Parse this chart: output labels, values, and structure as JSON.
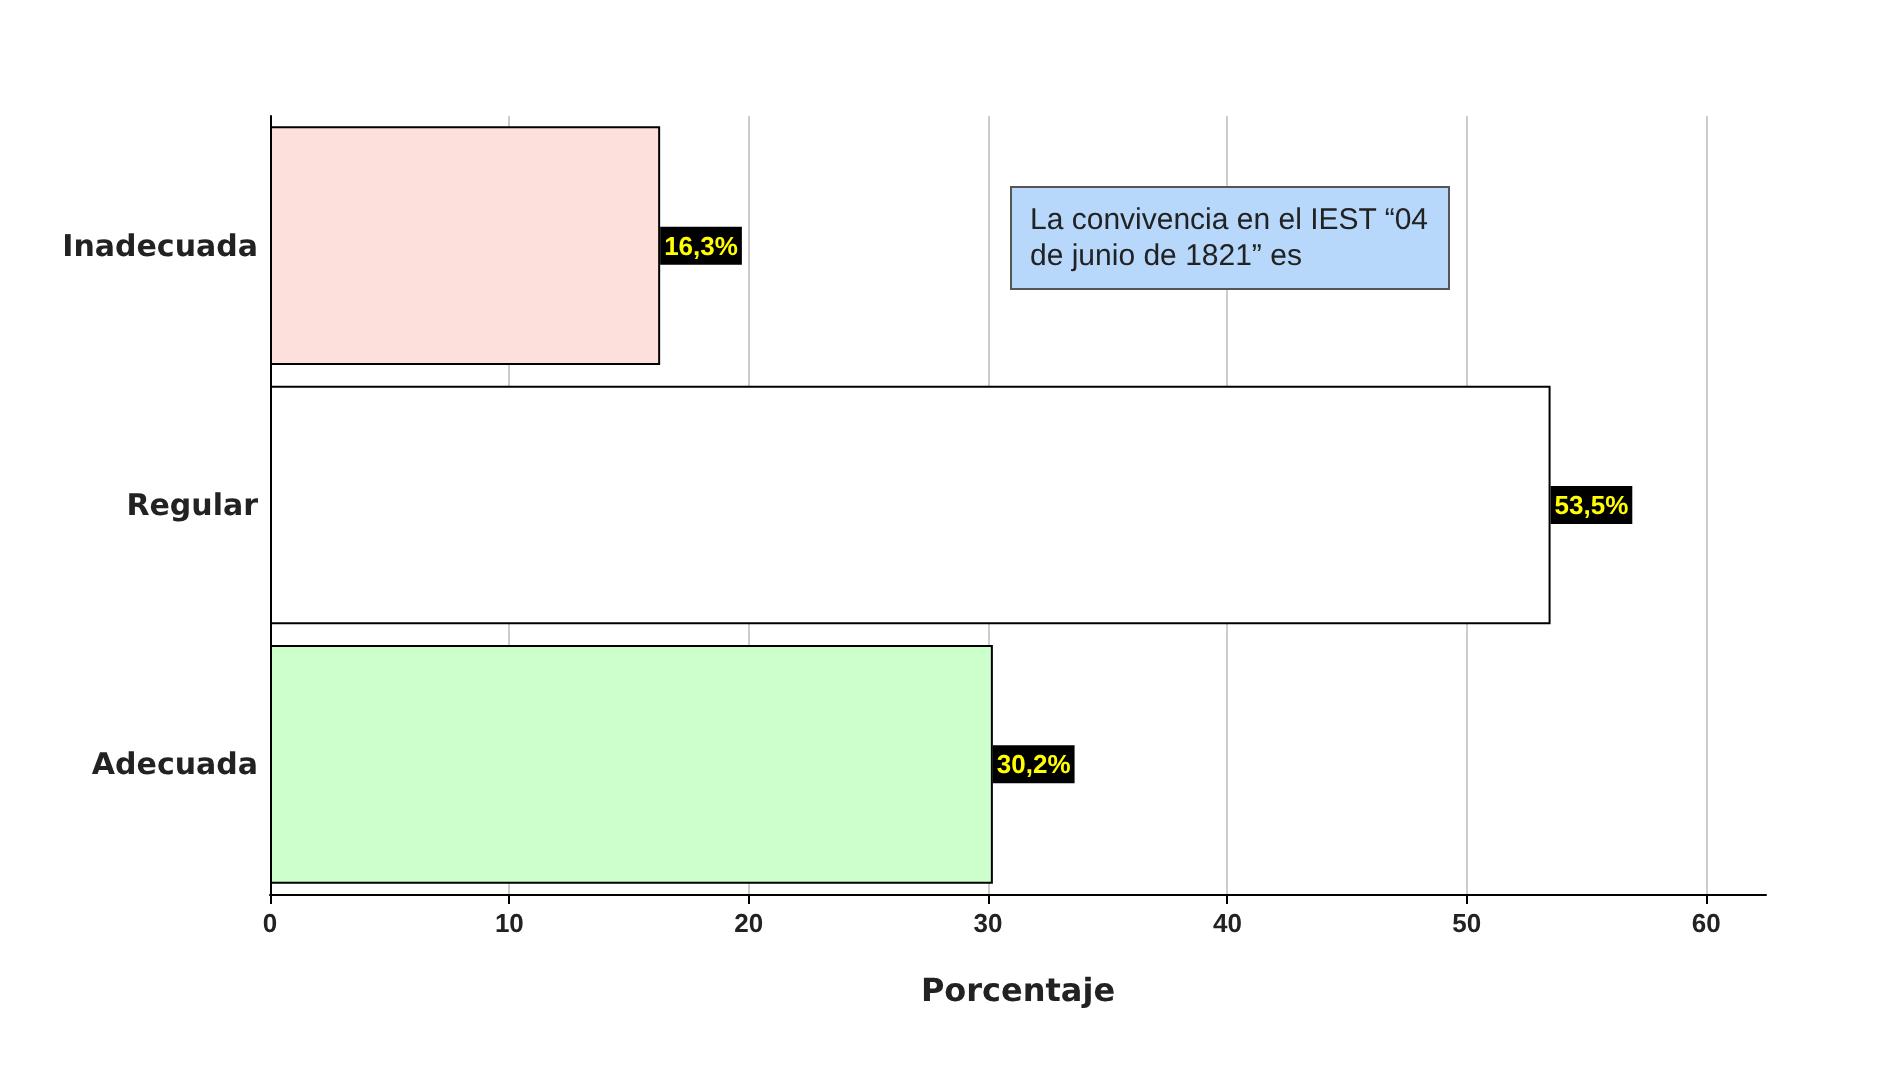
{
  "chart_data": {
    "type": "bar",
    "orientation": "horizontal",
    "title": "La convivencia en el IEST “04\nde junio de 1821” es",
    "xlabel": "Porcentaje",
    "categories": [
      "Inadecuada",
      "Regular",
      "Adecuada"
    ],
    "values": [
      16.3,
      53.5,
      30.2
    ],
    "colors": [
      "#fde0dc",
      "#ffffff",
      "#ccffcc"
    ],
    "value_labels": [
      "16,3%",
      "53,5%",
      "30,2%"
    ],
    "xlim": [
      0,
      62.5
    ],
    "xticks": [
      0,
      10,
      20,
      30,
      40,
      50,
      60
    ],
    "grid": "x"
  }
}
